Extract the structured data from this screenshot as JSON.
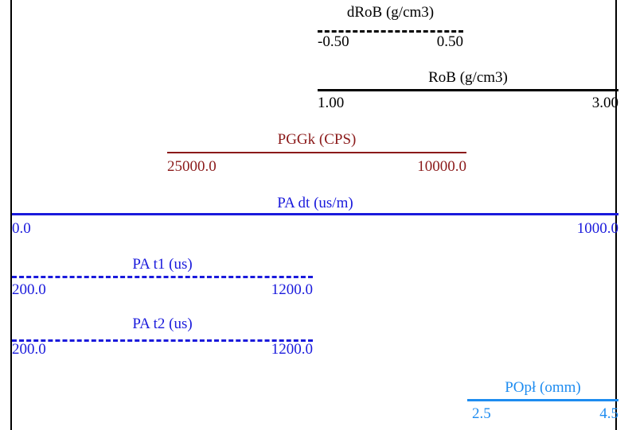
{
  "tracks": [
    {
      "title": "dRoB (g/cm3)",
      "min": "-0.50",
      "max": "0.50",
      "color": "#000000",
      "line": "dashed",
      "weight": "bold"
    },
    {
      "title": "RoB (g/cm3)",
      "min": "1.00",
      "max": "3.00",
      "color": "#000000",
      "line": "solid",
      "weight": "bold"
    },
    {
      "title": "PGGk (CPS)",
      "min": "25000.0",
      "max": "10000.0",
      "color": "#8b1a1a",
      "line": "solid",
      "weight": "thin"
    },
    {
      "title": "PA dt (us/m)",
      "min": "0.0",
      "max": "1000.0",
      "color": "#1a1adc",
      "line": "solid",
      "weight": "bold"
    },
    {
      "title": "PA t1 (us)",
      "min": "200.0",
      "max": "1200.0",
      "color": "#1a1adc",
      "line": "dashed",
      "weight": "bold"
    },
    {
      "title": "PA t2 (us)",
      "min": "200.0",
      "max": "1200.0",
      "color": "#1a1adc",
      "line": "dashed",
      "weight": "bold"
    },
    {
      "title": "POpł (omm)",
      "min": "2.5",
      "max": "4.5",
      "color": "#1e8cf0",
      "line": "solid",
      "weight": "bold"
    }
  ]
}
